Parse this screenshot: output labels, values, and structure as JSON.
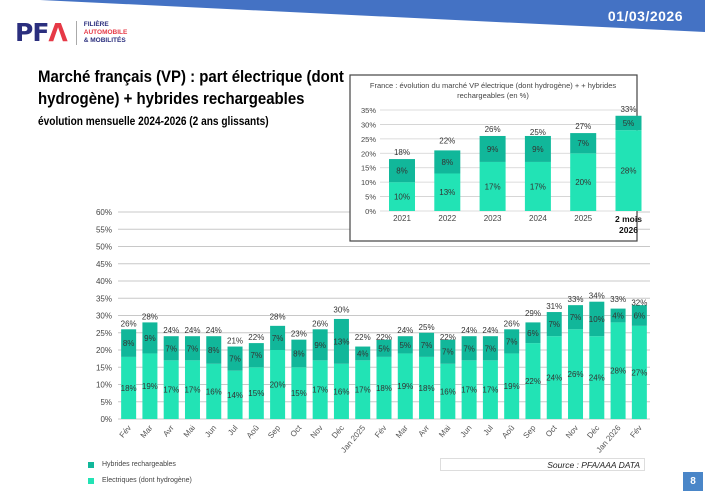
{
  "header": {
    "date": "01/03/2026",
    "page_number": "8"
  },
  "logo": {
    "letters": "PFA",
    "line1": "FILIÈRE",
    "line2": "AUTOMOBILE",
    "line3": "& MOBILITÉS"
  },
  "title": "Marché français (VP) : part électrique (dont hydrogène) + hybrides rechargeables",
  "subtitle": "évolution mensuelle 2024-2026 (2 ans glissants)",
  "source": "Source : PFA/AAA DATA",
  "colors": {
    "electric": "#22e3b5",
    "hybrid": "#11b79a",
    "banner": "#4472c4"
  },
  "chart_data": [
    {
      "type": "bar",
      "stacked": true,
      "categories": [
        "Fév",
        "Mar",
        "Avr",
        "Mai",
        "Jun",
        "Jul",
        "Aoû",
        "Sep",
        "Oct",
        "Nov",
        "Déc",
        "Jan 2025",
        "Fév",
        "Mar",
        "Avr",
        "Mai",
        "Jun",
        "Jul",
        "Aoû",
        "Sep",
        "Oct",
        "Nov",
        "Déc",
        "Jan 2026",
        "Fév"
      ],
      "series": [
        {
          "name": "Electriques (dont hydrogène)",
          "values": [
            18,
            19,
            17,
            17,
            16,
            14,
            15,
            20,
            15,
            17,
            16,
            17,
            18,
            19,
            18,
            16,
            17,
            17,
            19,
            22,
            24,
            26,
            24,
            28,
            27
          ]
        },
        {
          "name": "Hybrides rechargeables",
          "values": [
            8,
            9,
            7,
            7,
            8,
            7,
            7,
            7,
            8,
            9,
            13,
            4,
            5,
            5,
            7,
            7,
            7,
            7,
            7,
            6,
            7,
            7,
            10,
            4,
            6
          ]
        }
      ],
      "totals": [
        26,
        28,
        24,
        24,
        24,
        21,
        22,
        28,
        23,
        26,
        30,
        22,
        22,
        24,
        25,
        22,
        24,
        24,
        26,
        29,
        31,
        33,
        34,
        33,
        32
      ],
      "ylim": [
        0,
        60
      ],
      "yticks": [
        "0%",
        "5%",
        "10%",
        "15%",
        "20%",
        "25%",
        "30%",
        "35%",
        "40%",
        "45%",
        "50%",
        "55%",
        "60%"
      ],
      "grid": true,
      "legend": "bottom-left"
    },
    {
      "type": "bar",
      "stacked": true,
      "title": "France : évolution du marché VP électrique (dont hydrogène) + hybrides rechargeables (en %)",
      "categories": [
        "2021",
        "2022",
        "2023",
        "2024",
        "2025",
        "2 mois 2026"
      ],
      "series": [
        {
          "name": "Electriques (dont hydrogène)",
          "values": [
            10,
            13,
            17,
            17,
            20,
            28
          ]
        },
        {
          "name": "Hybrides rechargeables",
          "values": [
            8,
            8,
            9,
            9,
            7,
            5
          ]
        }
      ],
      "totals": [
        18,
        22,
        26,
        25,
        27,
        33
      ],
      "ylim": [
        0,
        35
      ],
      "yticks": [
        "0%",
        "5%",
        "10%",
        "15%",
        "20%",
        "25%",
        "30%",
        "35%"
      ],
      "grid": true
    }
  ]
}
